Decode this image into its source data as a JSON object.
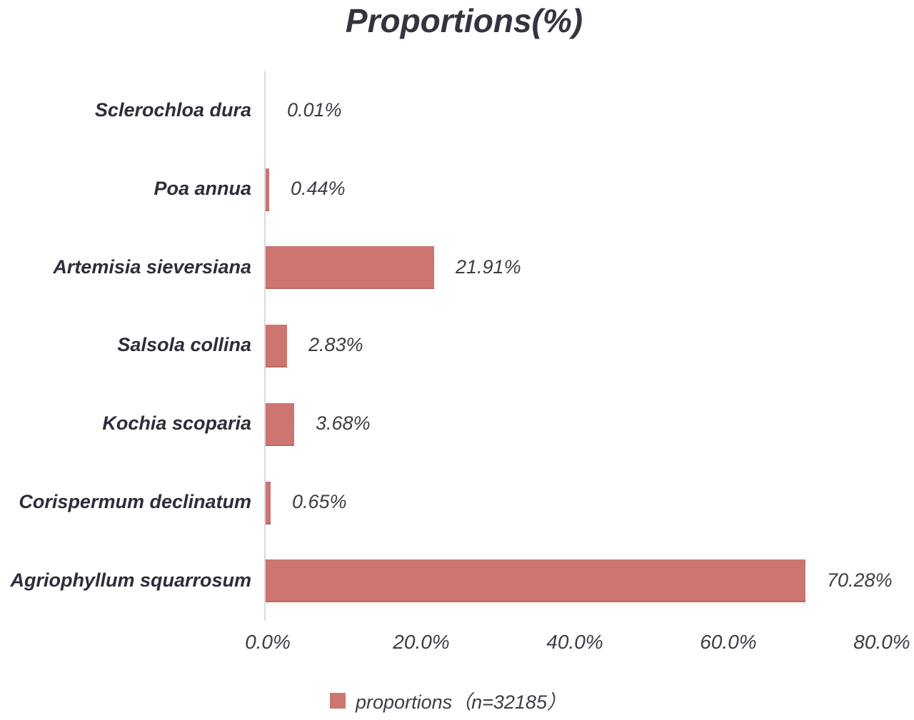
{
  "chart_data": {
    "type": "bar",
    "orientation": "horizontal",
    "title": "Proportions(%)",
    "categories": [
      "Sclerochloa dura",
      "Poa annua",
      "Artemisia sieversiana",
      "Salsola collina",
      "Kochia scoparia",
      "Corispermum declinatum",
      "Agriophyllum squarrosum"
    ],
    "values": [
      0.01,
      0.44,
      21.91,
      2.83,
      3.68,
      0.65,
      70.28
    ],
    "value_labels": [
      "0.01%",
      "0.44%",
      "21.91%",
      "2.83%",
      "3.68%",
      "0.65%",
      "70.28%"
    ],
    "xlabel": "",
    "ylabel": "",
    "xlim": [
      0,
      80
    ],
    "x_tick_step": 20,
    "x_ticks": [
      "0.0%",
      "20.0%",
      "40.0%",
      "60.0%",
      "80.0%"
    ],
    "grid": false,
    "legend": {
      "position": "bottom",
      "entries": [
        {
          "label": "proportions（n=32185）",
          "swatch": "bar-color"
        }
      ]
    }
  },
  "colors": {
    "bar": "#cc7571",
    "bar_edge": "#bc6763",
    "axis_line": "#d9d9d9",
    "title_text": "#343440",
    "category_text": "#2d2d3b",
    "value_text": "#3c3c46"
  }
}
